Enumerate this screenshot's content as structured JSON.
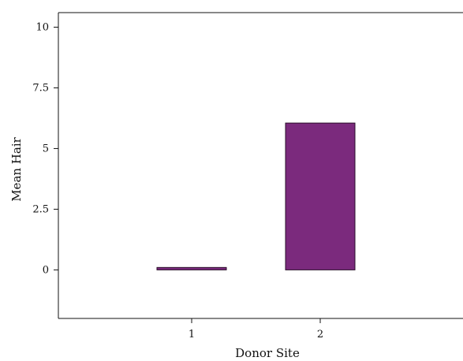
{
  "chart_data": {
    "type": "bar",
    "categories": [
      "1",
      "2"
    ],
    "values": [
      0.1,
      6.05
    ],
    "xlabel": "Donor Site",
    "ylabel": "Mean Hair",
    "ylim": [
      -2,
      10.6
    ],
    "yticks": [
      0,
      2.5,
      5,
      7.5,
      10
    ],
    "ytick_labels": [
      "0",
      "2.5",
      "5",
      "7.5",
      "10"
    ],
    "grid": false,
    "bar_color": "#7b2a7d",
    "bar_edge_color": "#2b0f2b"
  }
}
